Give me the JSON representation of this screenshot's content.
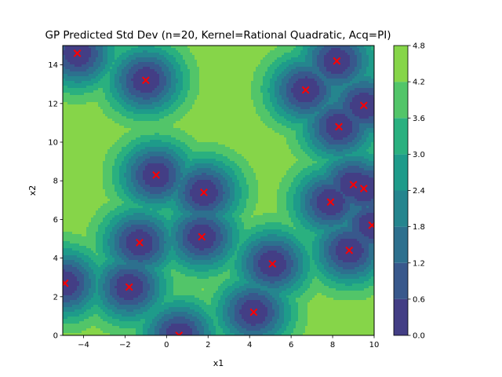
{
  "chart_data": {
    "type": "heatmap",
    "title": "GP Predicted Std Dev (n=20, Kernel=Rational Quadratic, Acq=PI)",
    "xlabel": "x1",
    "ylabel": "x2",
    "xlim": [
      -5,
      10
    ],
    "ylim": [
      0,
      15
    ],
    "x_ticks": [
      -4,
      -2,
      0,
      2,
      4,
      6,
      8,
      10
    ],
    "y_ticks": [
      0,
      2,
      4,
      6,
      8,
      10,
      12,
      14
    ],
    "colorbar": {
      "levels": [
        0.0,
        0.6,
        1.2,
        1.8,
        2.4,
        3.0,
        3.6,
        4.2,
        4.8
      ],
      "colors": [
        "#482173",
        "#433e85",
        "#38588c",
        "#2d708e",
        "#25858e",
        "#1e9b8a",
        "#2ab07f",
        "#52c569",
        "#86d549",
        "#c2df23"
      ]
    },
    "grid": false,
    "sample_points": [
      {
        "x1": -4.3,
        "x2": 14.6
      },
      {
        "x1": -1.0,
        "x2": 13.2
      },
      {
        "x1": 6.7,
        "x2": 12.7
      },
      {
        "x1": 8.2,
        "x2": 14.2
      },
      {
        "x1": 8.3,
        "x2": 10.8
      },
      {
        "x1": 9.5,
        "x2": 11.9
      },
      {
        "x1": -0.5,
        "x2": 8.3
      },
      {
        "x1": 1.8,
        "x2": 7.4
      },
      {
        "x1": 7.9,
        "x2": 6.9
      },
      {
        "x1": 9.0,
        "x2": 7.8
      },
      {
        "x1": 9.5,
        "x2": 7.6
      },
      {
        "x1": 9.9,
        "x2": 5.7
      },
      {
        "x1": 1.7,
        "x2": 5.1
      },
      {
        "x1": -1.3,
        "x2": 4.8
      },
      {
        "x1": 8.8,
        "x2": 4.4
      },
      {
        "x1": 5.1,
        "x2": 3.7
      },
      {
        "x1": -4.9,
        "x2": 2.7
      },
      {
        "x1": -1.8,
        "x2": 2.5
      },
      {
        "x1": 4.2,
        "x2": 1.2
      },
      {
        "x1": 0.6,
        "x2": 0.0
      }
    ],
    "marker": {
      "color": "#ff0000",
      "symbol": "x"
    }
  }
}
